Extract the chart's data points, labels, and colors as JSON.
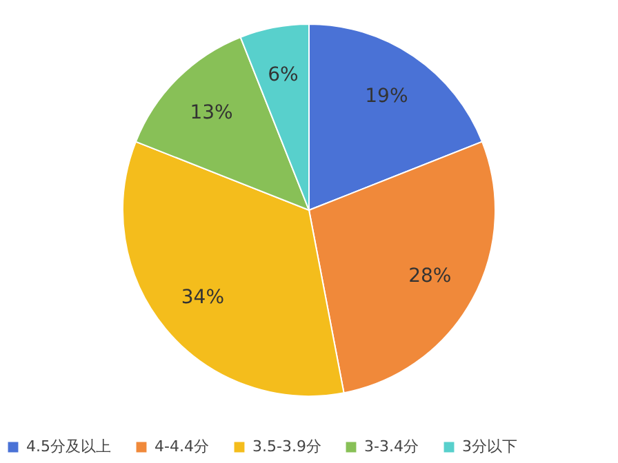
{
  "chart_data": {
    "type": "pie",
    "categories": [
      "4.5分及以上",
      "4-4.4分",
      "3.5-3.9分",
      "3-3.4分",
      "3分以下"
    ],
    "values": [
      19,
      28,
      34,
      13,
      6
    ],
    "colors": [
      "#4a72d6",
      "#f0893a",
      "#f4bd1c",
      "#88c057",
      "#58d0cc"
    ],
    "value_labels": [
      "19%",
      "28%",
      "34%",
      "13%",
      "6%"
    ],
    "legend": "bottom"
  }
}
